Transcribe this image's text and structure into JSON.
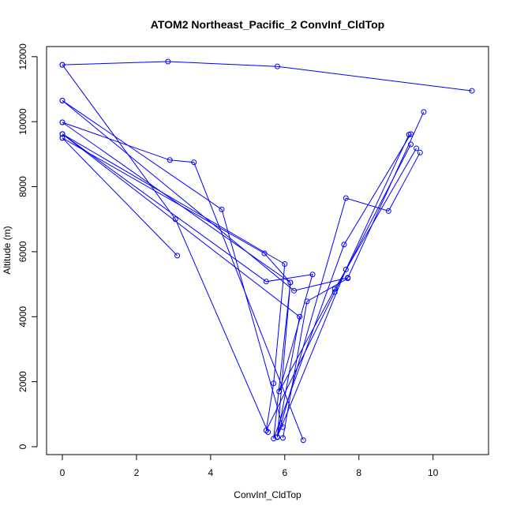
{
  "chart_data": {
    "type": "line",
    "title": "ATOM2 Northeast_Pacific_2 ConvInf_CldTop",
    "xlabel": "ConvInf_CldTop",
    "ylabel": "Altitude (m)",
    "xlim": [
      0,
      11.05
    ],
    "ylim": [
      0,
      11850
    ],
    "x_ticks": [
      0,
      2,
      4,
      6,
      8,
      10
    ],
    "y_ticks": [
      0,
      2000,
      4000,
      6000,
      8000,
      10000,
      12000
    ],
    "grid": false,
    "legend": "none",
    "color": "#0000ff",
    "series": [
      {
        "x": [
          0,
          2.85,
          5.8,
          11.05
        ],
        "y": [
          11750,
          11850,
          11700,
          10950
        ]
      },
      {
        "x": [
          0,
          3.05,
          5.55
        ],
        "y": [
          11750,
          7000,
          450
        ]
      },
      {
        "x": [
          0,
          4.3,
          5.95
        ],
        "y": [
          10650,
          7300,
          600
        ]
      },
      {
        "x": [
          0,
          6.25,
          7.7,
          9.75
        ],
        "y": [
          10650,
          4800,
          5200,
          10300
        ]
      },
      {
        "x": [
          0,
          2.9,
          3.55,
          6.5
        ],
        "y": [
          9980,
          8820,
          8750,
          200
        ]
      },
      {
        "x": [
          0,
          6.15,
          5.7,
          7.6,
          9.4
        ],
        "y": [
          9980,
          5050,
          250,
          6220,
          9620
        ]
      },
      {
        "x": [
          0,
          5.5,
          6.75,
          5.85,
          7.35,
          9.55
        ],
        "y": [
          9620,
          5080,
          5300,
          1700,
          4850,
          9180
        ]
      },
      {
        "x": [
          0,
          6.4,
          5.8,
          7.65,
          9.35
        ],
        "y": [
          9620,
          4000,
          300,
          5450,
          9600
        ]
      },
      {
        "x": [
          0,
          5.45,
          6.15,
          5.8,
          7.65,
          8.8,
          9.65
        ],
        "y": [
          9500,
          5950,
          5050,
          290,
          7650,
          7250,
          9050
        ]
      },
      {
        "x": [
          0,
          6,
          5.7,
          5.5,
          7.35,
          9.4
        ],
        "y": [
          9620,
          5620,
          1950,
          500,
          4760,
          9300
        ]
      },
      {
        "x": [
          0,
          3.1
        ],
        "y": [
          9500,
          5880
        ]
      },
      {
        "x": [
          5.95,
          6.6,
          7.7
        ],
        "y": [
          270,
          4470,
          5180
        ]
      }
    ]
  }
}
